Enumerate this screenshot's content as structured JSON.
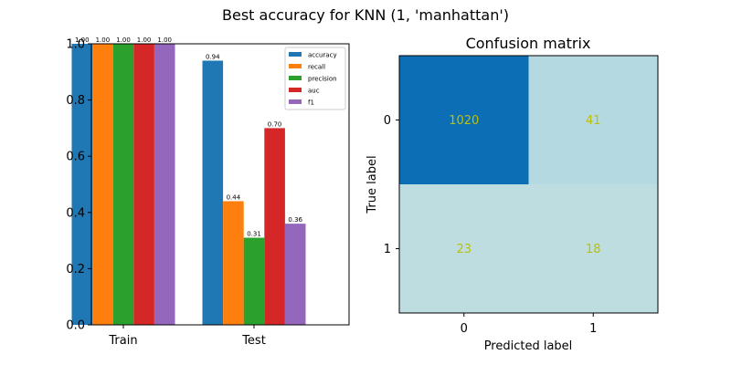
{
  "title": "Best accuracy for KNN (1, 'manhattan')",
  "chart_data": [
    {
      "type": "bar",
      "categories": [
        "Train",
        "Test"
      ],
      "series": [
        {
          "name": "accuracy",
          "color": "#1f77b4",
          "values": [
            1.0,
            0.94
          ],
          "labels": [
            "1.00",
            "0.94"
          ]
        },
        {
          "name": "recall",
          "color": "#ff7f0e",
          "values": [
            1.0,
            0.44
          ],
          "labels": [
            "1.00",
            "0.44"
          ]
        },
        {
          "name": "precision",
          "color": "#2ca02c",
          "values": [
            1.0,
            0.31
          ],
          "labels": [
            "1.00",
            "0.31"
          ]
        },
        {
          "name": "auc",
          "color": "#d62728",
          "values": [
            1.0,
            0.7
          ],
          "labels": [
            "1.00",
            "0.70"
          ]
        },
        {
          "name": "f1",
          "color": "#9467bd",
          "values": [
            1.0,
            0.36
          ],
          "labels": [
            "1.00",
            "0.36"
          ]
        }
      ],
      "ylim": [
        0,
        1.0
      ],
      "yticks": [
        "0.0",
        "0.2",
        "0.4",
        "0.6",
        "0.8",
        "1.0"
      ],
      "legend_position": "top-right",
      "grid": false
    },
    {
      "type": "heatmap",
      "title": "Confusion matrix",
      "xlabel": "Predicted label",
      "ylabel": "True label",
      "x_categories": [
        "0",
        "1"
      ],
      "y_categories": [
        "0",
        "1"
      ],
      "values": [
        [
          1020,
          41
        ],
        [
          23,
          18
        ]
      ],
      "cell_labels": [
        [
          "1020",
          "41"
        ],
        [
          "23",
          "18"
        ]
      ],
      "colors": [
        [
          "#0c6fb5",
          "#b5d9e0"
        ],
        [
          "#bddde0",
          "#bddde0"
        ]
      ]
    }
  ]
}
